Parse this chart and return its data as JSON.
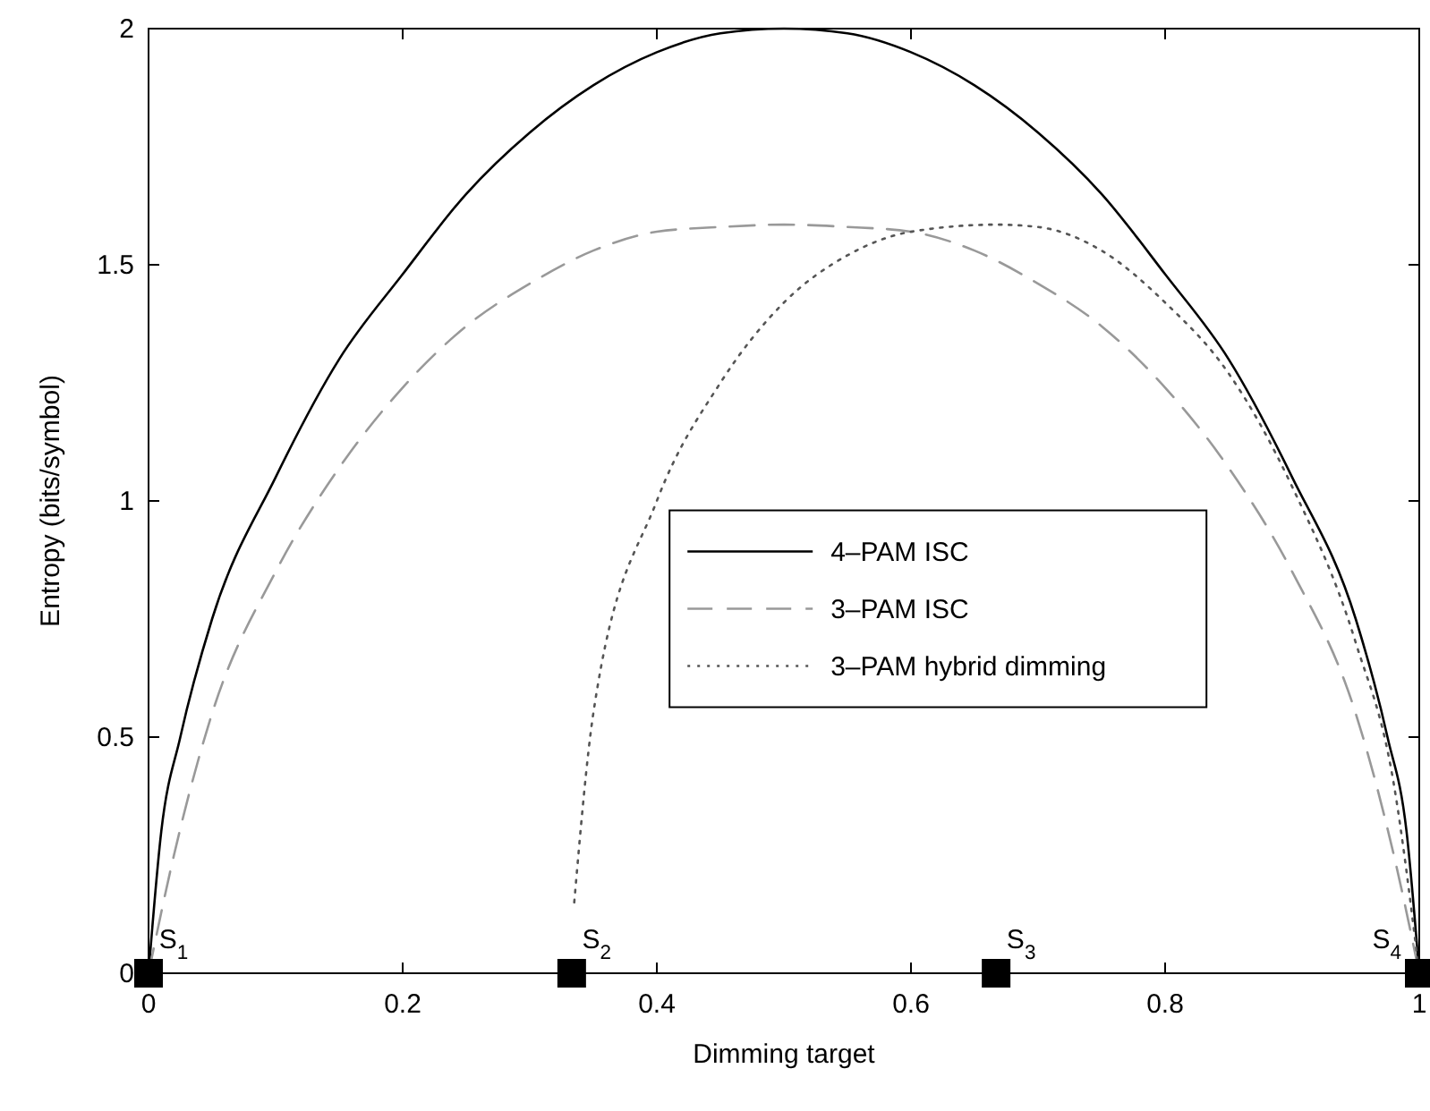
{
  "chart_data": {
    "type": "line",
    "xlabel": "Dimming target",
    "ylabel": "Entropy (bits/symbol)",
    "xlim": [
      0,
      1
    ],
    "ylim": [
      0,
      2
    ],
    "xticks": [
      0,
      0.2,
      0.4,
      0.6,
      0.8,
      1
    ],
    "yticks": [
      0,
      0.5,
      1,
      1.5,
      2
    ],
    "grid": false,
    "legend": "center right",
    "series": [
      {
        "name": "4–PAM ISC",
        "color": "#000000",
        "line_style": "solid",
        "x": [
          0,
          0.01,
          0.025,
          0.05,
          0.1,
          0.15,
          0.2,
          0.25,
          0.3,
          0.35,
          0.4,
          0.45,
          0.5,
          0.55,
          0.6,
          0.65,
          0.7,
          0.75,
          0.8,
          0.85,
          0.9,
          0.95,
          0.975,
          0.99,
          1
        ],
        "values": [
          0,
          0.3,
          0.5,
          0.75,
          1.05,
          1.3,
          1.48,
          1.65,
          1.78,
          1.88,
          1.95,
          1.99,
          2,
          1.99,
          1.95,
          1.88,
          1.78,
          1.65,
          1.48,
          1.3,
          1.05,
          0.75,
          0.5,
          0.3,
          0
        ]
      },
      {
        "name": "3–PAM ISC",
        "color": "#999999",
        "line_style": "dashed",
        "x": [
          0,
          0.02,
          0.05,
          0.1,
          0.15,
          0.2,
          0.25,
          0.3,
          0.35,
          0.4,
          0.45,
          0.5,
          0.55,
          0.6,
          0.65,
          0.7,
          0.75,
          0.8,
          0.85,
          0.9,
          0.95,
          0.98,
          1
        ],
        "values": [
          0,
          0.25,
          0.55,
          0.85,
          1.07,
          1.24,
          1.37,
          1.46,
          1.53,
          1.57,
          1.58,
          1.585,
          1.58,
          1.57,
          1.53,
          1.46,
          1.37,
          1.24,
          1.07,
          0.85,
          0.55,
          0.25,
          0
        ]
      },
      {
        "name": "3–PAM hybrid dimming",
        "color": "#555555",
        "line_style": "dotted",
        "x": [
          0.335,
          0.35,
          0.4,
          0.45,
          0.5,
          0.55,
          0.6,
          0.667,
          0.7,
          0.75,
          0.8,
          0.85,
          0.9,
          0.95,
          0.98,
          1
        ],
        "values": [
          0.15,
          0.55,
          1.0,
          1.25,
          1.42,
          1.52,
          1.57,
          1.585,
          1.58,
          1.53,
          1.42,
          1.27,
          1.03,
          0.7,
          0.4,
          0
        ]
      },
      {
        "type": "scatter",
        "marker": "square",
        "color": "#000000",
        "x": [
          0,
          0.333,
          0.667,
          1
        ],
        "values": [
          0,
          0,
          0,
          0
        ]
      }
    ],
    "annotations": [
      {
        "text": "S$_{1}$",
        "x": 0,
        "y": 0
      },
      {
        "text": "S$_{2}$",
        "x": 0.333,
        "y": 0
      },
      {
        "text": "S$_{3}$",
        "x": 0.667,
        "y": 0
      },
      {
        "text": "S$_{4}$",
        "x": 1,
        "y": 0
      }
    ]
  }
}
